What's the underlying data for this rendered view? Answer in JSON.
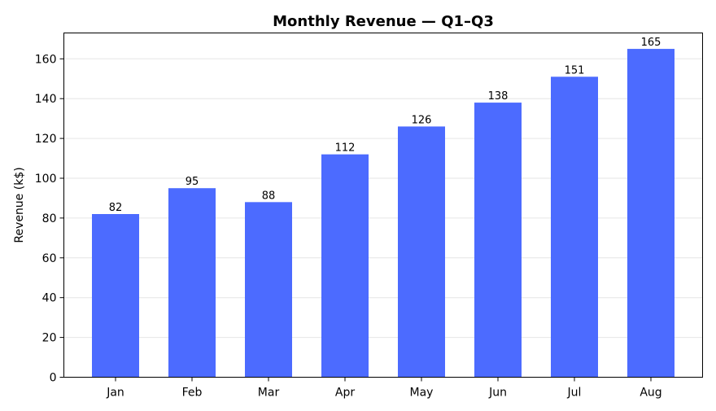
{
  "chart_data": {
    "type": "bar",
    "title": "Monthly Revenue — Q1–Q3",
    "xlabel": "",
    "ylabel": "Revenue (k$)",
    "categories": [
      "Jan",
      "Feb",
      "Mar",
      "Apr",
      "May",
      "Jun",
      "Jul",
      "Aug"
    ],
    "values": [
      82,
      95,
      88,
      112,
      126,
      138,
      151,
      165
    ],
    "ylim": [
      0,
      173
    ],
    "yticks": [
      0,
      20,
      40,
      60,
      80,
      100,
      120,
      140,
      160
    ],
    "grid": "horizontal",
    "bar_color": "#4c6bff",
    "data_labels": true
  }
}
